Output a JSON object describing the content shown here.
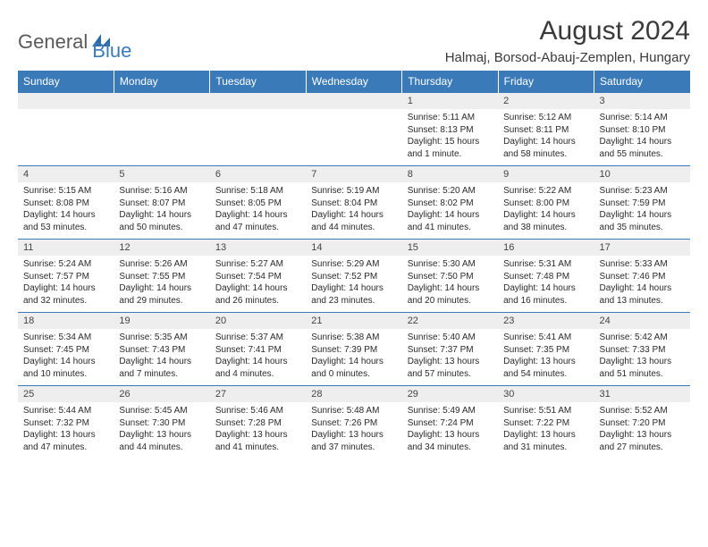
{
  "logo": {
    "text1": "General",
    "text2": "Blue",
    "color_general": "#5a5a5a",
    "color_blue": "#3a7ab8"
  },
  "header": {
    "month_title": "August 2024",
    "location": "Halmaj, Borsod-Abauj-Zemplen, Hungary"
  },
  "colors": {
    "header_bg": "#3a7ab8",
    "header_text": "#ffffff",
    "daynum_bg": "#eeeeee",
    "row_border": "#3a7ab8"
  },
  "weekdays": [
    "Sunday",
    "Monday",
    "Tuesday",
    "Wednesday",
    "Thursday",
    "Friday",
    "Saturday"
  ],
  "weeks": [
    [
      {
        "n": "",
        "sr": "",
        "ss": "",
        "dl": ""
      },
      {
        "n": "",
        "sr": "",
        "ss": "",
        "dl": ""
      },
      {
        "n": "",
        "sr": "",
        "ss": "",
        "dl": ""
      },
      {
        "n": "",
        "sr": "",
        "ss": "",
        "dl": ""
      },
      {
        "n": "1",
        "sr": "Sunrise: 5:11 AM",
        "ss": "Sunset: 8:13 PM",
        "dl": "Daylight: 15 hours and 1 minute."
      },
      {
        "n": "2",
        "sr": "Sunrise: 5:12 AM",
        "ss": "Sunset: 8:11 PM",
        "dl": "Daylight: 14 hours and 58 minutes."
      },
      {
        "n": "3",
        "sr": "Sunrise: 5:14 AM",
        "ss": "Sunset: 8:10 PM",
        "dl": "Daylight: 14 hours and 55 minutes."
      }
    ],
    [
      {
        "n": "4",
        "sr": "Sunrise: 5:15 AM",
        "ss": "Sunset: 8:08 PM",
        "dl": "Daylight: 14 hours and 53 minutes."
      },
      {
        "n": "5",
        "sr": "Sunrise: 5:16 AM",
        "ss": "Sunset: 8:07 PM",
        "dl": "Daylight: 14 hours and 50 minutes."
      },
      {
        "n": "6",
        "sr": "Sunrise: 5:18 AM",
        "ss": "Sunset: 8:05 PM",
        "dl": "Daylight: 14 hours and 47 minutes."
      },
      {
        "n": "7",
        "sr": "Sunrise: 5:19 AM",
        "ss": "Sunset: 8:04 PM",
        "dl": "Daylight: 14 hours and 44 minutes."
      },
      {
        "n": "8",
        "sr": "Sunrise: 5:20 AM",
        "ss": "Sunset: 8:02 PM",
        "dl": "Daylight: 14 hours and 41 minutes."
      },
      {
        "n": "9",
        "sr": "Sunrise: 5:22 AM",
        "ss": "Sunset: 8:00 PM",
        "dl": "Daylight: 14 hours and 38 minutes."
      },
      {
        "n": "10",
        "sr": "Sunrise: 5:23 AM",
        "ss": "Sunset: 7:59 PM",
        "dl": "Daylight: 14 hours and 35 minutes."
      }
    ],
    [
      {
        "n": "11",
        "sr": "Sunrise: 5:24 AM",
        "ss": "Sunset: 7:57 PM",
        "dl": "Daylight: 14 hours and 32 minutes."
      },
      {
        "n": "12",
        "sr": "Sunrise: 5:26 AM",
        "ss": "Sunset: 7:55 PM",
        "dl": "Daylight: 14 hours and 29 minutes."
      },
      {
        "n": "13",
        "sr": "Sunrise: 5:27 AM",
        "ss": "Sunset: 7:54 PM",
        "dl": "Daylight: 14 hours and 26 minutes."
      },
      {
        "n": "14",
        "sr": "Sunrise: 5:29 AM",
        "ss": "Sunset: 7:52 PM",
        "dl": "Daylight: 14 hours and 23 minutes."
      },
      {
        "n": "15",
        "sr": "Sunrise: 5:30 AM",
        "ss": "Sunset: 7:50 PM",
        "dl": "Daylight: 14 hours and 20 minutes."
      },
      {
        "n": "16",
        "sr": "Sunrise: 5:31 AM",
        "ss": "Sunset: 7:48 PM",
        "dl": "Daylight: 14 hours and 16 minutes."
      },
      {
        "n": "17",
        "sr": "Sunrise: 5:33 AM",
        "ss": "Sunset: 7:46 PM",
        "dl": "Daylight: 14 hours and 13 minutes."
      }
    ],
    [
      {
        "n": "18",
        "sr": "Sunrise: 5:34 AM",
        "ss": "Sunset: 7:45 PM",
        "dl": "Daylight: 14 hours and 10 minutes."
      },
      {
        "n": "19",
        "sr": "Sunrise: 5:35 AM",
        "ss": "Sunset: 7:43 PM",
        "dl": "Daylight: 14 hours and 7 minutes."
      },
      {
        "n": "20",
        "sr": "Sunrise: 5:37 AM",
        "ss": "Sunset: 7:41 PM",
        "dl": "Daylight: 14 hours and 4 minutes."
      },
      {
        "n": "21",
        "sr": "Sunrise: 5:38 AM",
        "ss": "Sunset: 7:39 PM",
        "dl": "Daylight: 14 hours and 0 minutes."
      },
      {
        "n": "22",
        "sr": "Sunrise: 5:40 AM",
        "ss": "Sunset: 7:37 PM",
        "dl": "Daylight: 13 hours and 57 minutes."
      },
      {
        "n": "23",
        "sr": "Sunrise: 5:41 AM",
        "ss": "Sunset: 7:35 PM",
        "dl": "Daylight: 13 hours and 54 minutes."
      },
      {
        "n": "24",
        "sr": "Sunrise: 5:42 AM",
        "ss": "Sunset: 7:33 PM",
        "dl": "Daylight: 13 hours and 51 minutes."
      }
    ],
    [
      {
        "n": "25",
        "sr": "Sunrise: 5:44 AM",
        "ss": "Sunset: 7:32 PM",
        "dl": "Daylight: 13 hours and 47 minutes."
      },
      {
        "n": "26",
        "sr": "Sunrise: 5:45 AM",
        "ss": "Sunset: 7:30 PM",
        "dl": "Daylight: 13 hours and 44 minutes."
      },
      {
        "n": "27",
        "sr": "Sunrise: 5:46 AM",
        "ss": "Sunset: 7:28 PM",
        "dl": "Daylight: 13 hours and 41 minutes."
      },
      {
        "n": "28",
        "sr": "Sunrise: 5:48 AM",
        "ss": "Sunset: 7:26 PM",
        "dl": "Daylight: 13 hours and 37 minutes."
      },
      {
        "n": "29",
        "sr": "Sunrise: 5:49 AM",
        "ss": "Sunset: 7:24 PM",
        "dl": "Daylight: 13 hours and 34 minutes."
      },
      {
        "n": "30",
        "sr": "Sunrise: 5:51 AM",
        "ss": "Sunset: 7:22 PM",
        "dl": "Daylight: 13 hours and 31 minutes."
      },
      {
        "n": "31",
        "sr": "Sunrise: 5:52 AM",
        "ss": "Sunset: 7:20 PM",
        "dl": "Daylight: 13 hours and 27 minutes."
      }
    ]
  ]
}
